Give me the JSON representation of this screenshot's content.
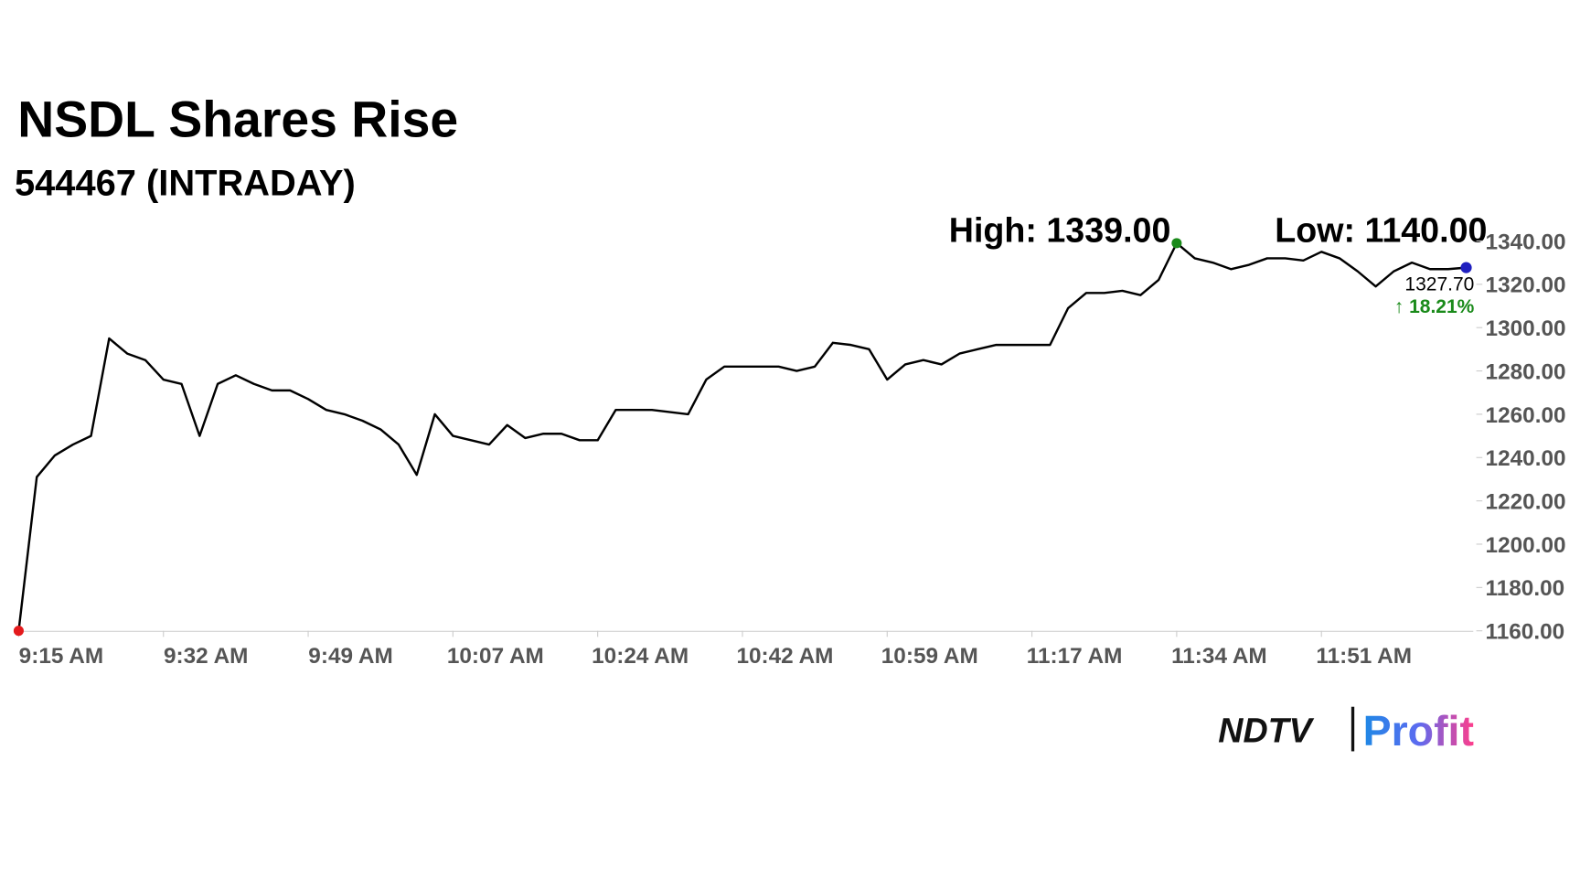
{
  "chart_data": {
    "type": "line",
    "title": "NSDL Shares Rise",
    "subtitle": "544467 (INTRADAY)",
    "annotations": {
      "high": "High: 1339.00",
      "low": "Low: 1140.00",
      "last": "1327.70",
      "change": "↑ 18.21%"
    },
    "categories": [
      "9:15 AM",
      null,
      null,
      null,
      null,
      null,
      null,
      null,
      "9:32 AM",
      null,
      null,
      null,
      null,
      null,
      null,
      null,
      "9:49 AM",
      null,
      null,
      null,
      null,
      null,
      null,
      null,
      "10:07 AM",
      null,
      null,
      null,
      null,
      null,
      null,
      null,
      "10:24 AM",
      null,
      null,
      null,
      null,
      null,
      null,
      null,
      "10:42 AM",
      null,
      null,
      null,
      null,
      null,
      null,
      null,
      "10:59 AM",
      null,
      null,
      null,
      null,
      null,
      null,
      null,
      "11:17 AM",
      null,
      null,
      null,
      null,
      null,
      null,
      null,
      "11:34 AM",
      null,
      null,
      null,
      null,
      null,
      null,
      null,
      "11:51 AM",
      null,
      null,
      null,
      null,
      null,
      null,
      null,
      null
    ],
    "series": [
      {
        "name": "544467",
        "color": "#000000",
        "values": [
          1160,
          1231,
          1241,
          1246,
          1250,
          1295,
          1288,
          1285,
          1276,
          1274,
          1250,
          1274,
          1278,
          1274,
          1271,
          1271,
          1267,
          1262,
          1260,
          1257,
          1253,
          1246,
          1232,
          1260,
          1250,
          1248,
          1246,
          1255,
          1249,
          1251,
          1251,
          1248,
          1248,
          1262,
          1262,
          1262,
          1261,
          1260,
          1276,
          1282,
          1282,
          1282,
          1282,
          1280,
          1282,
          1293,
          1292,
          1290,
          1276,
          1283,
          1285,
          1283,
          1288,
          1290,
          1292,
          1292,
          1292,
          1292,
          1309,
          1316,
          1316,
          1317,
          1315,
          1322,
          1339,
          1332,
          1330,
          1327,
          1329,
          1332,
          1332,
          1331,
          1335,
          1332,
          1326,
          1319,
          1326,
          1330,
          1327,
          1327,
          1327.7
        ]
      }
    ],
    "markers": {
      "start": "#e41a1c",
      "high": "#1a8a1a",
      "end": "#1f1fbf"
    },
    "ylim": [
      1160,
      1340
    ],
    "yticks": [
      {
        "value": 1160,
        "label": "1160.00"
      },
      {
        "value": 1180,
        "label": "1180.00"
      },
      {
        "value": 1200,
        "label": "1200.00"
      },
      {
        "value": 1220,
        "label": "1220.00"
      },
      {
        "value": 1240,
        "label": "1240.00"
      },
      {
        "value": 1260,
        "label": "1260.00"
      },
      {
        "value": 1280,
        "label": "1280.00"
      },
      {
        "value": 1300,
        "label": "1300.00"
      },
      {
        "value": 1320,
        "label": "1320.00"
      },
      {
        "value": 1340,
        "label": "1340.00"
      }
    ],
    "grid": false
  },
  "logo": {
    "left": "NDTV",
    "right": "Profit"
  }
}
